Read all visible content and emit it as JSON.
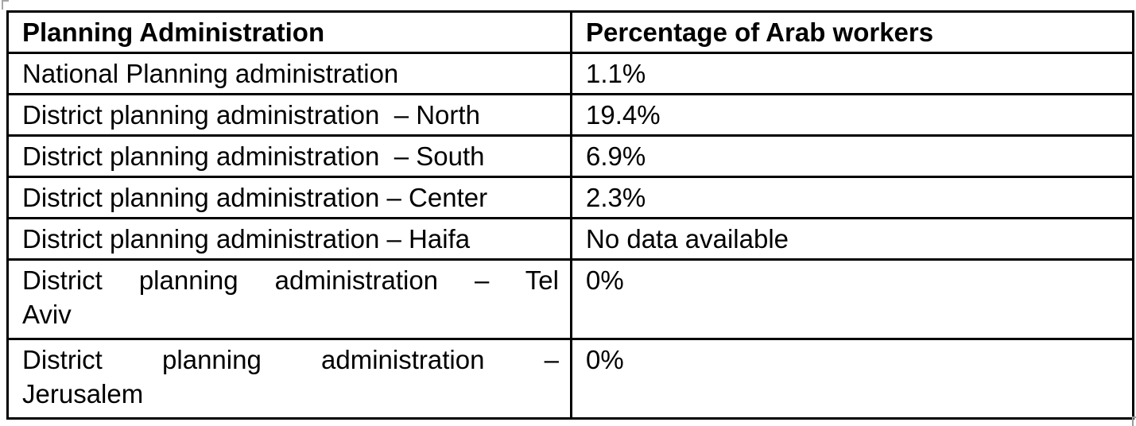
{
  "table": {
    "border_color": "#000000",
    "text_color": "#000000",
    "background_color": "#ffffff",
    "columns": [
      {
        "label": "Planning Administration"
      },
      {
        "label": "Percentage of Arab workers"
      }
    ],
    "rows": [
      {
        "admin_lines": [
          "National Planning administration"
        ],
        "value": "1.1%"
      },
      {
        "admin_lines": [
          "District planning administration  – North"
        ],
        "value": "19.4%"
      },
      {
        "admin_lines": [
          "District planning administration  – South"
        ],
        "value": "6.9%"
      },
      {
        "admin_lines": [
          "District planning administration – Center"
        ],
        "value": "2.3%"
      },
      {
        "admin_lines": [
          "District planning administration – Haifa"
        ],
        "value": "No data available"
      },
      {
        "admin_lines": [
          "District planning administration – Tel",
          "Aviv"
        ],
        "value": "0%"
      },
      {
        "admin_lines": [
          "District planning administration –",
          "Jerusalem"
        ],
        "value": "0%"
      }
    ]
  },
  "chart_data": {
    "type": "table",
    "columns": [
      "Planning Administration",
      "Percentage of Arab workers"
    ],
    "rows": [
      [
        "National Planning administration",
        "1.1%"
      ],
      [
        "District planning administration – North",
        "19.4%"
      ],
      [
        "District planning administration – South",
        "6.9%"
      ],
      [
        "District planning administration – Center",
        "2.3%"
      ],
      [
        "District planning administration – Haifa",
        "No data available"
      ],
      [
        "District planning administration – Tel Aviv",
        "0%"
      ],
      [
        "District planning administration – Jerusalem",
        "0%"
      ]
    ]
  }
}
